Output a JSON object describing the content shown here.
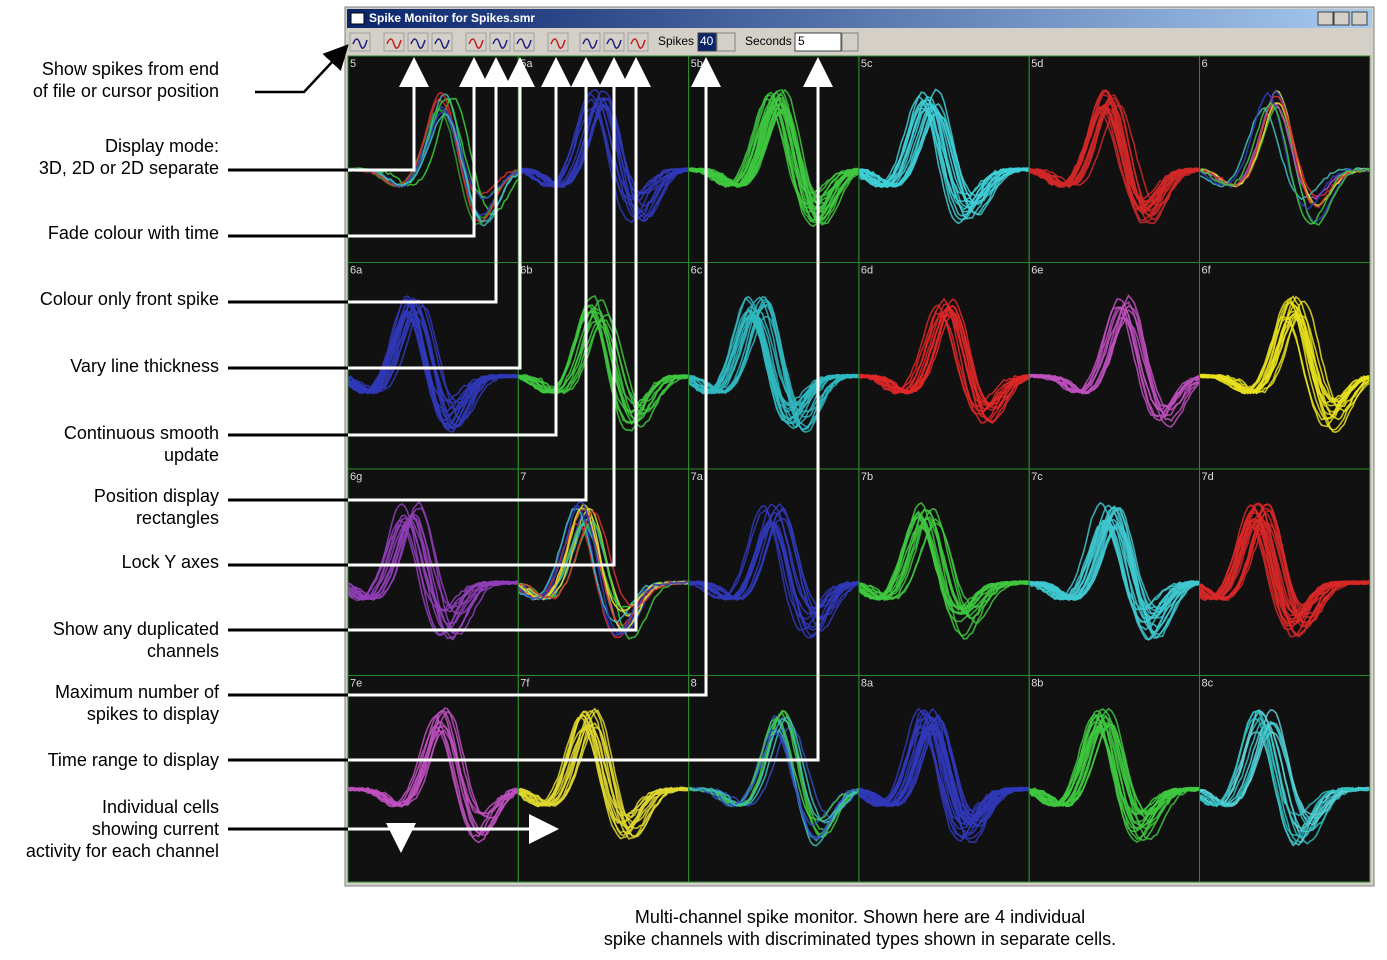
{
  "window": {
    "title": "Spike Monitor for Spikes.smr",
    "toolbar": {
      "spikes_label": "Spikes",
      "spikes_value": "40",
      "seconds_label": "Seconds",
      "seconds_value": "5"
    }
  },
  "cells": [
    {
      "label": "5",
      "colors": [
        "#2f9f2f",
        "#3ad03a",
        "#d83030",
        "#3040c0",
        "#40c0c0"
      ]
    },
    {
      "label": "5a",
      "colors": [
        "#3038b8"
      ]
    },
    {
      "label": "5b",
      "colors": [
        "#40c840"
      ]
    },
    {
      "label": "5c",
      "colors": [
        "#40d0d8"
      ]
    },
    {
      "label": "5d",
      "colors": [
        "#d02828"
      ]
    },
    {
      "label": "6",
      "colors": [
        "#e8e030",
        "#d83030",
        "#3040c0",
        "#40c840",
        "#c050c0",
        "#40c0c0"
      ]
    },
    {
      "label": "6a",
      "colors": [
        "#3038b8"
      ]
    },
    {
      "label": "6b",
      "colors": [
        "#40c840"
      ]
    },
    {
      "label": "6c",
      "colors": [
        "#30b8c0"
      ]
    },
    {
      "label": "6d",
      "colors": [
        "#e02828"
      ]
    },
    {
      "label": "6e",
      "colors": [
        "#c050c0"
      ]
    },
    {
      "label": "6f",
      "colors": [
        "#e8e020"
      ]
    },
    {
      "label": "6g",
      "colors": [
        "#9040b8"
      ]
    },
    {
      "label": "7",
      "colors": [
        "#40c0c0",
        "#e8e030",
        "#d83030",
        "#3040c0",
        "#40c840"
      ]
    },
    {
      "label": "7a",
      "colors": [
        "#3038b8"
      ]
    },
    {
      "label": "7b",
      "colors": [
        "#40c840"
      ]
    },
    {
      "label": "7c",
      "colors": [
        "#40c8d0"
      ]
    },
    {
      "label": "7d",
      "colors": [
        "#d82828"
      ]
    },
    {
      "label": "7e",
      "colors": [
        "#c050c0"
      ]
    },
    {
      "label": "7f",
      "colors": [
        "#e0d830"
      ]
    },
    {
      "label": "8",
      "colors": [
        "#40c840",
        "#3050c0",
        "#40c0c0"
      ]
    },
    {
      "label": "8a",
      "colors": [
        "#3038b8"
      ]
    },
    {
      "label": "8b",
      "colors": [
        "#40c840"
      ]
    },
    {
      "label": "8c",
      "colors": [
        "#30c0c0",
        "#60d0d8"
      ]
    }
  ],
  "annotations": [
    {
      "lines": [
        "Show spikes from end",
        "of file or cursor position"
      ]
    },
    {
      "lines": [
        "Display mode:",
        "3D, 2D or 2D separate"
      ]
    },
    {
      "lines": [
        "Fade colour with time"
      ]
    },
    {
      "lines": [
        "Colour only front spike"
      ]
    },
    {
      "lines": [
        "Vary line thickness"
      ]
    },
    {
      "lines": [
        "Continuous smooth",
        "update"
      ]
    },
    {
      "lines": [
        "Position display",
        "rectangles"
      ]
    },
    {
      "lines": [
        "Lock Y axes"
      ]
    },
    {
      "lines": [
        "Show any duplicated",
        "channels"
      ]
    },
    {
      "lines": [
        "Maximum number of",
        "spikes to display"
      ]
    },
    {
      "lines": [
        "Time range to display"
      ]
    },
    {
      "lines": [
        "Individual cells",
        "showing current",
        "activity for each channel"
      ]
    }
  ],
  "caption": {
    "lines": [
      "Multi-channel spike monitor. Shown here are 4 individual",
      "spike channels with discriminated types shown in separate cells."
    ]
  }
}
